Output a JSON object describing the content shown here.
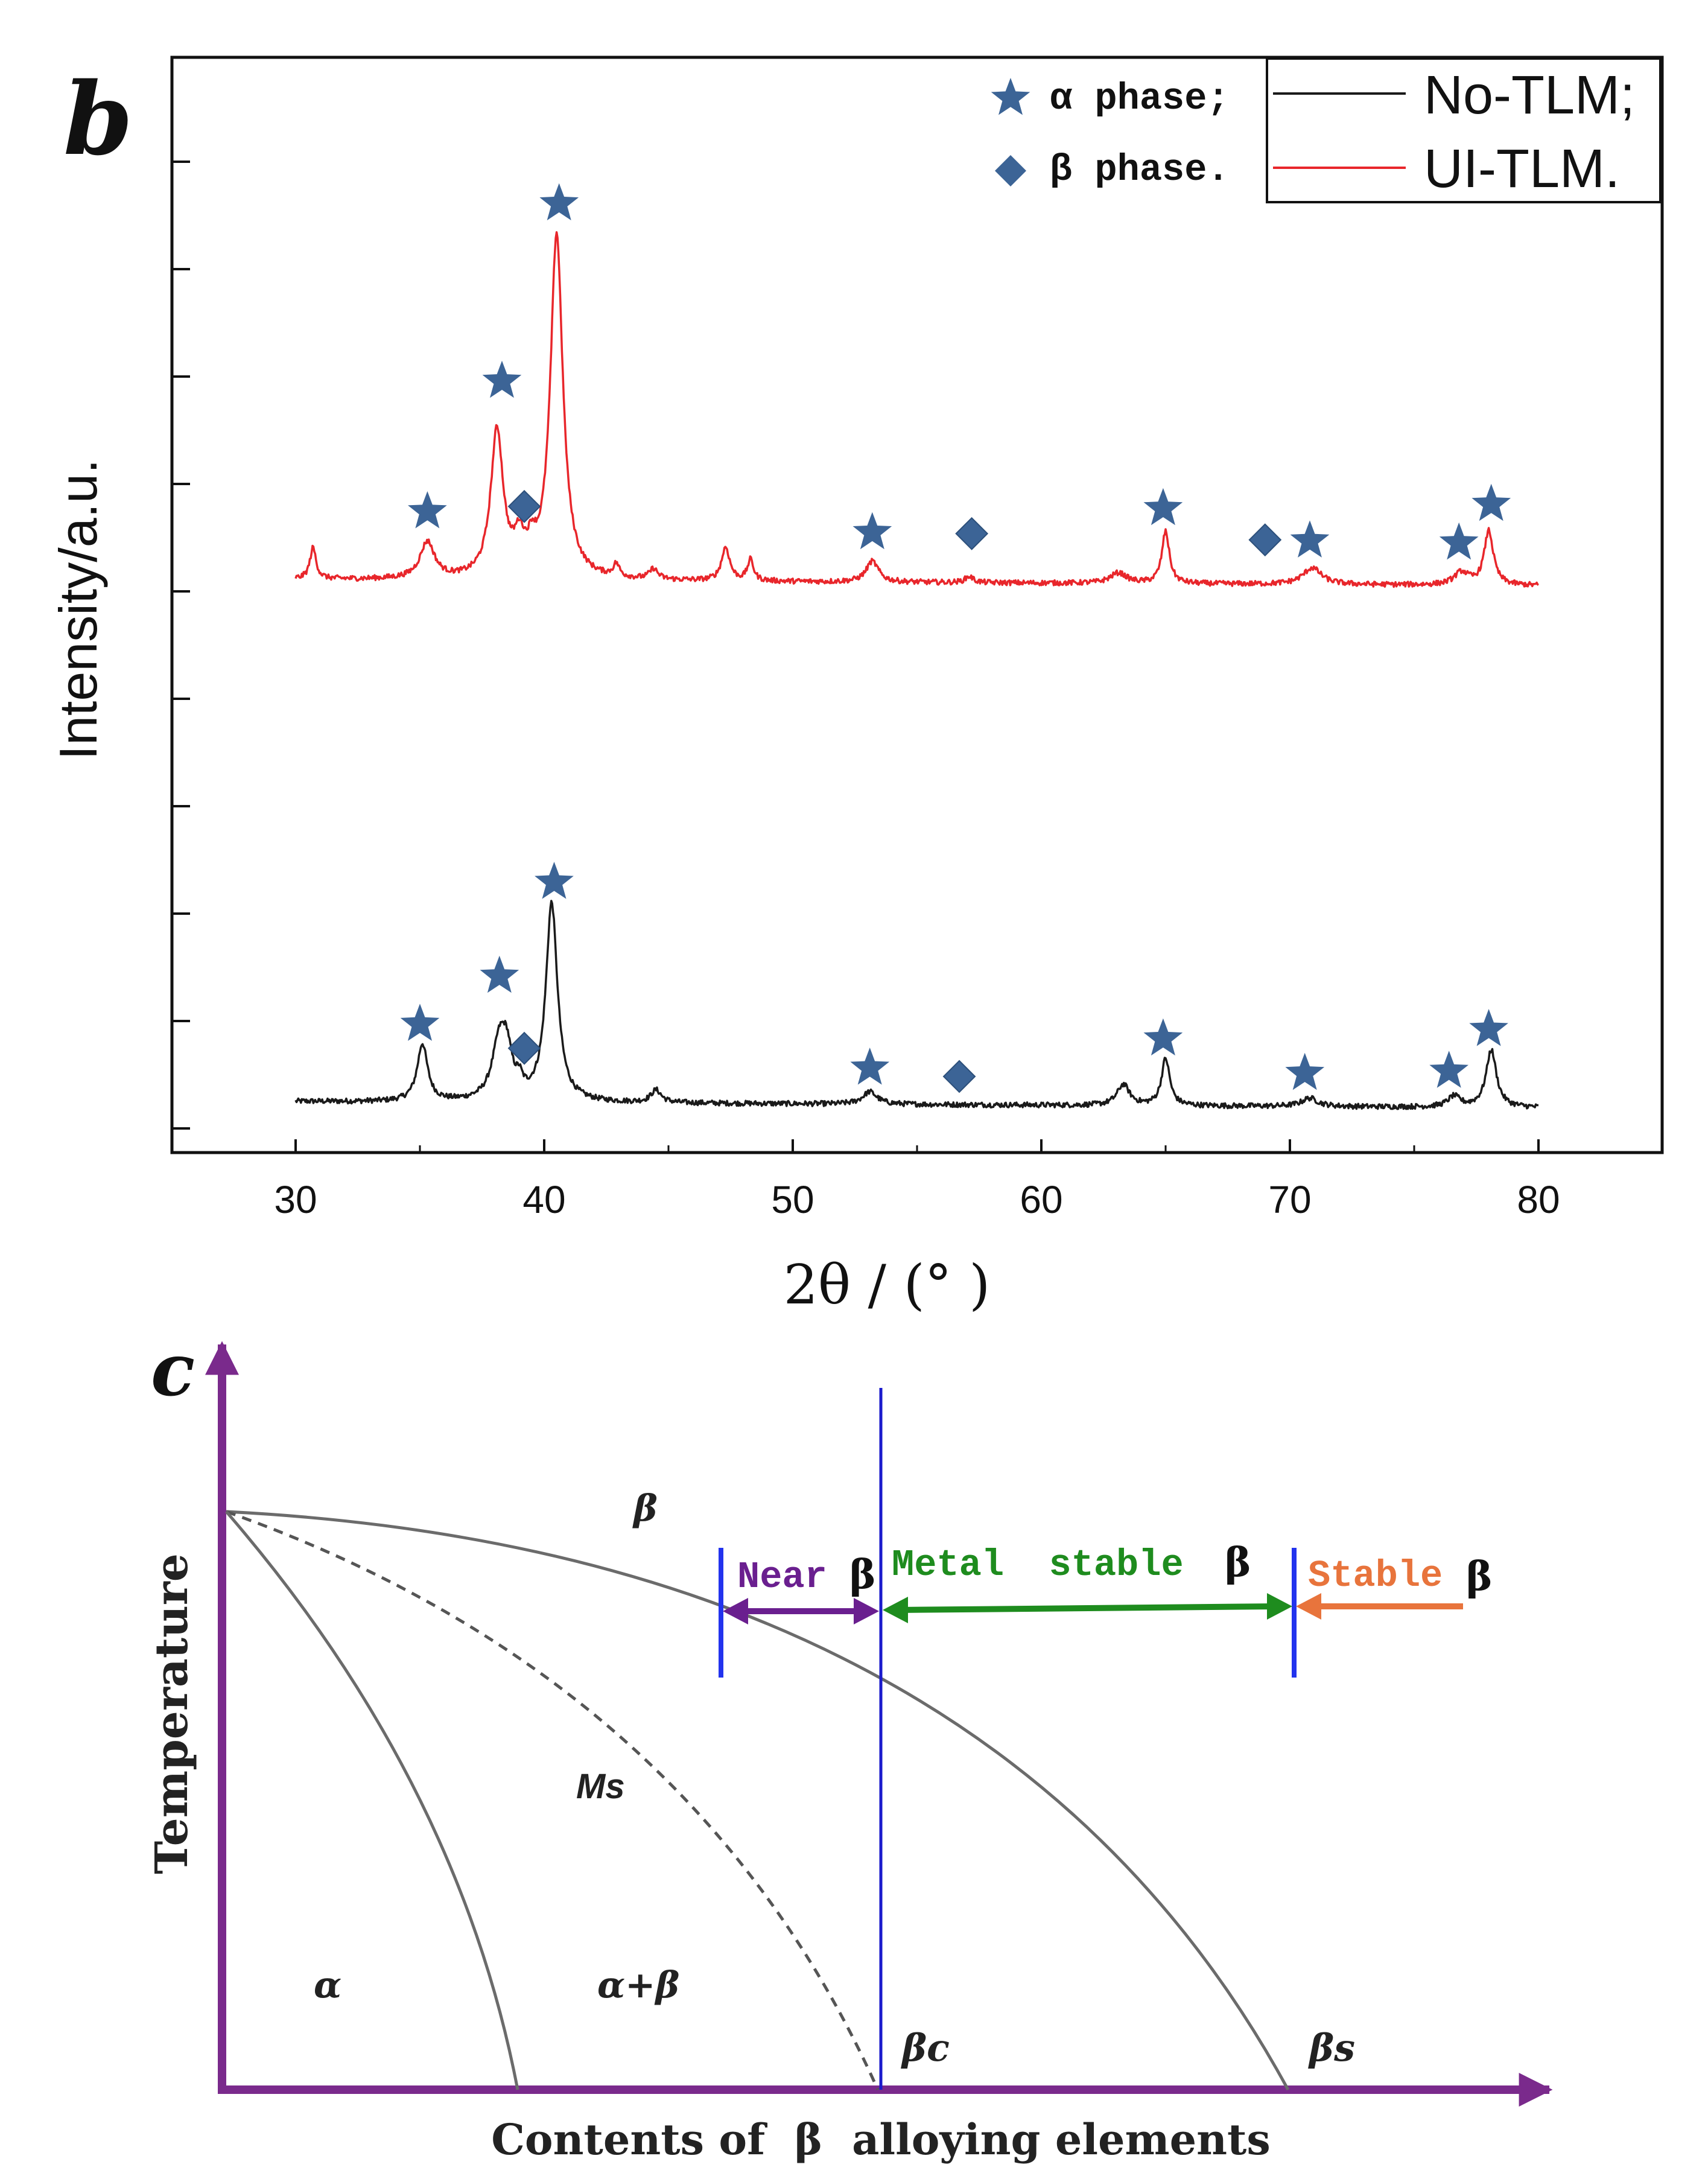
{
  "chart_data": [
    {
      "type": "line",
      "panel_label": "b",
      "xlabel": "2θ / (° )",
      "ylabel": "Intensity/a.u.",
      "xlim": [
        25,
        85
      ],
      "ylim": [
        0,
        1
      ],
      "x_ticks": [
        30,
        40,
        50,
        60,
        70,
        80
      ],
      "y_ticks_labeled": false,
      "grid": false,
      "legend": {
        "placement": "top-right",
        "entries": [
          "No-TLM;",
          "UI-TLM."
        ],
        "colors": [
          "#1a1a1a",
          "#e8262b"
        ]
      },
      "marker_legend": {
        "placement": "top-center-right",
        "entries": [
          {
            "symbol": "star",
            "label": "α phase;"
          },
          {
            "symbol": "diamond",
            "label": "β phase."
          }
        ],
        "color": "#3c6496"
      },
      "series": [
        {
          "name": "No-TLM",
          "color": "#1a1a1a",
          "baseline": 0.02,
          "x_range": [
            30,
            80
          ],
          "peaks": [
            {
              "x": 35.1,
              "height": 0.055,
              "width": 0.25
            },
            {
              "x": 38.2,
              "height": 0.055,
              "width": 0.35
            },
            {
              "x": 38.5,
              "height": 0.035,
              "width": 0.25
            },
            {
              "x": 39.0,
              "height": 0.012,
              "width": 0.15
            },
            {
              "x": 40.3,
              "height": 0.19,
              "width": 0.28
            },
            {
              "x": 44.5,
              "height": 0.012,
              "width": 0.25
            },
            {
              "x": 53.1,
              "height": 0.012,
              "width": 0.35
            },
            {
              "x": 63.3,
              "height": 0.02,
              "width": 0.3
            },
            {
              "x": 65.0,
              "height": 0.045,
              "width": 0.2
            },
            {
              "x": 70.8,
              "height": 0.008,
              "width": 0.4
            },
            {
              "x": 76.6,
              "height": 0.01,
              "width": 0.3
            },
            {
              "x": 78.1,
              "height": 0.055,
              "width": 0.25
            }
          ]
        },
        {
          "name": "UI-TLM",
          "color": "#e8262b",
          "baseline": 0.52,
          "x_range": [
            30,
            80
          ],
          "peaks": [
            {
              "x": 30.7,
              "height": 0.03,
              "width": 0.15
            },
            {
              "x": 35.3,
              "height": 0.035,
              "width": 0.35
            },
            {
              "x": 38.1,
              "height": 0.14,
              "width": 0.3
            },
            {
              "x": 39.0,
              "height": 0.03,
              "width": 0.25
            },
            {
              "x": 39.5,
              "height": 0.02,
              "width": 0.2
            },
            {
              "x": 40.5,
              "height": 0.33,
              "width": 0.3
            },
            {
              "x": 42.9,
              "height": 0.012,
              "width": 0.15
            },
            {
              "x": 44.4,
              "height": 0.01,
              "width": 0.2
            },
            {
              "x": 47.3,
              "height": 0.032,
              "width": 0.2
            },
            {
              "x": 48.3,
              "height": 0.02,
              "width": 0.15
            },
            {
              "x": 53.2,
              "height": 0.02,
              "width": 0.3
            },
            {
              "x": 57.1,
              "height": 0.006,
              "width": 0.2
            },
            {
              "x": 63.1,
              "height": 0.01,
              "width": 0.4
            },
            {
              "x": 65.0,
              "height": 0.05,
              "width": 0.18
            },
            {
              "x": 70.9,
              "height": 0.016,
              "width": 0.45
            },
            {
              "x": 76.9,
              "height": 0.012,
              "width": 0.35
            },
            {
              "x": 78.0,
              "height": 0.052,
              "width": 0.22
            }
          ]
        }
      ],
      "annotations": {
        "alpha_stars": [
          {
            "x": 35.3,
            "y": 0.585
          },
          {
            "x": 38.3,
            "y": 0.71
          },
          {
            "x": 40.6,
            "y": 0.88
          },
          {
            "x": 53.2,
            "y": 0.565
          },
          {
            "x": 64.9,
            "y": 0.588
          },
          {
            "x": 70.8,
            "y": 0.557
          },
          {
            "x": 76.8,
            "y": 0.555
          },
          {
            "x": 78.1,
            "y": 0.592
          },
          {
            "x": 35.0,
            "y": 0.094
          },
          {
            "x": 38.2,
            "y": 0.14
          },
          {
            "x": 40.4,
            "y": 0.23
          },
          {
            "x": 53.1,
            "y": 0.052
          },
          {
            "x": 64.9,
            "y": 0.08
          },
          {
            "x": 70.6,
            "y": 0.047
          },
          {
            "x": 76.4,
            "y": 0.049
          },
          {
            "x": 78.0,
            "y": 0.089
          }
        ],
        "beta_diamonds": [
          {
            "x": 39.2,
            "y": 0.59
          },
          {
            "x": 57.2,
            "y": 0.564
          },
          {
            "x": 69.0,
            "y": 0.558
          },
          {
            "x": 39.2,
            "y": 0.071
          },
          {
            "x": 56.7,
            "y": 0.044
          }
        ]
      }
    },
    {
      "type": "diagram",
      "panel_label": "c",
      "xlabel": "Contents of  β  alloying elements",
      "ylabel": "Temperature",
      "region_labels": {
        "beta": "β",
        "ms": "Ms",
        "alpha": "α",
        "alpha_beta": "α+β"
      },
      "axis_point_labels": {
        "beta_c": "βc",
        "beta_s": "βs"
      },
      "ranges": [
        {
          "label": "Near",
          "symbol": "β",
          "color": "#6a1f8f"
        },
        {
          "label": "Metal  stable",
          "symbol": "β",
          "color": "#1e8c1e"
        },
        {
          "label": "Stable",
          "symbol": "β",
          "color": "#e8743c"
        }
      ],
      "colors": {
        "axis": "#7a2a8c",
        "curves": "#6b6b6b",
        "boundary": "#1a1acc"
      }
    }
  ]
}
